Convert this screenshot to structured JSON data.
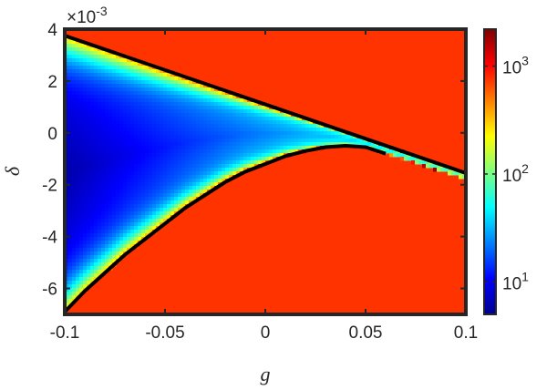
{
  "chart_data": {
    "type": "heatmap",
    "title": "",
    "xlabel": "g",
    "ylabel": "δ",
    "xlim": [
      -0.1,
      0.1
    ],
    "ylim": [
      -0.007,
      0.004
    ],
    "x_ticks": [
      {
        "value": -0.1,
        "label": "-0.1"
      },
      {
        "value": -0.05,
        "label": "-0.05"
      },
      {
        "value": 0,
        "label": "0"
      },
      {
        "value": 0.05,
        "label": "0.05"
      },
      {
        "value": 0.1,
        "label": "0.1"
      }
    ],
    "y_ticks": [
      {
        "value": 0.004,
        "label": "4"
      },
      {
        "value": 0.002,
        "label": "2"
      },
      {
        "value": 0,
        "label": "0"
      },
      {
        "value": -0.002,
        "label": "-2"
      },
      {
        "value": -0.004,
        "label": "-4"
      },
      {
        "value": -0.006,
        "label": "-6"
      }
    ],
    "y_exponent_label": {
      "base": "×10",
      "exp": "-3"
    },
    "colorbar": {
      "scale": "log",
      "range": [
        5,
        2200
      ],
      "ticks": [
        {
          "value": 10,
          "base": "10",
          "exp": "1"
        },
        {
          "value": 100,
          "base": "10",
          "exp": "2"
        },
        {
          "value": 1000,
          "base": "10",
          "exp": "3"
        }
      ],
      "colormap": "jet"
    },
    "background_value": 2200,
    "upper_boundary": {
      "x": [
        -0.1,
        0.1
      ],
      "y": [
        0.00375,
        -0.00155
      ]
    },
    "lower_boundary": {
      "x": [
        -0.1,
        -0.09,
        -0.08,
        -0.07,
        -0.06,
        -0.05,
        -0.04,
        -0.03,
        -0.02,
        -0.01,
        0.0,
        0.01,
        0.02,
        0.03,
        0.04,
        0.05,
        0.06
      ],
      "y": [
        -0.0069,
        -0.0061,
        -0.0054,
        -0.0047,
        -0.0041,
        -0.0035,
        -0.0029,
        -0.0024,
        -0.0019,
        -0.0015,
        -0.0012,
        -0.0009,
        -0.0007,
        -0.00055,
        -0.0005,
        -0.00055,
        -0.0008
      ]
    },
    "colors": {
      "frame": "#262626",
      "boundary": "#000000",
      "saturated": "#ff3300"
    }
  }
}
